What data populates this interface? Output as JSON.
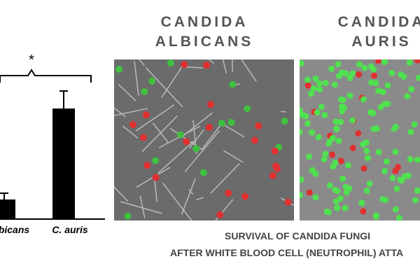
{
  "chart_data": {
    "type": "bar",
    "annotation": "*",
    "categories": [
      "bicans",
      "C. auris"
    ],
    "values": [
      28,
      158
    ],
    "errors": [
      9,
      25
    ],
    "color": "#000000",
    "ylim": [
      0,
      200
    ]
  },
  "panels": [
    {
      "title": [
        "CANDIDA",
        "ALBICANS"
      ]
    },
    {
      "title": [
        "CANDIDA",
        "AURIS"
      ]
    }
  ],
  "caption": [
    "SURVIVAL OF CANDIDA FUNGI",
    "AFTER WHITE BLOOD CELL (NEUTROPHIL) ATTA"
  ]
}
